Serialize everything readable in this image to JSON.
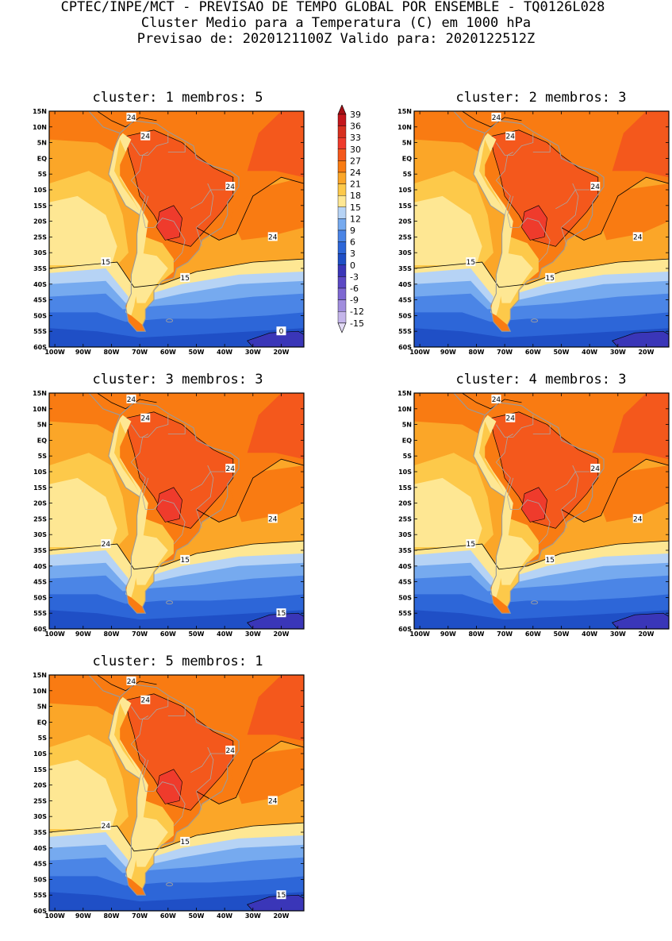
{
  "header": {
    "line1": "CPTEC/INPE/MCT - PREVISAO DE TEMPO GLOBAL POR ENSEMBLE - TQ0126L028",
    "line2": "Cluster Medio para a Temperatura (C) em 1000 hPa",
    "line3": "Previsao de: 2020121100Z   Valido para: 2020122512Z"
  },
  "map": {
    "lat_labels": [
      "15N",
      "10N",
      "5N",
      "EQ",
      "5S",
      "10S",
      "15S",
      "20S",
      "25S",
      "30S",
      "35S",
      "40S",
      "45S",
      "50S",
      "55S",
      "60S"
    ],
    "lon_labels": [
      "100W",
      "90W",
      "80W",
      "70W",
      "60W",
      "50W",
      "40W",
      "30W",
      "20W"
    ]
  },
  "colorbar": {
    "labels": [
      "39",
      "36",
      "33",
      "30",
      "27",
      "24",
      "21",
      "18",
      "15",
      "12",
      "9",
      "6",
      "3",
      "0",
      "-3",
      "-6",
      "-9",
      "-12",
      "-15"
    ],
    "colors": [
      "#a50f15",
      "#c4161c",
      "#d7301f",
      "#ef3b2c",
      "#f4581c",
      "#f97b12",
      "#fba628",
      "#fdc94a",
      "#fee793",
      "#b6d3f5",
      "#76aaef",
      "#4b85e6",
      "#2d66d8",
      "#1f4fc6",
      "#3a36b8",
      "#5b48c4",
      "#7e68d2",
      "#a08ddd",
      "#c4b5ea",
      "#e3dbf5"
    ]
  },
  "panels": [
    {
      "title": "cluster: 1  membros: 5",
      "labels": [
        "24",
        "24",
        "24",
        "24",
        "15",
        "15",
        "0"
      ]
    },
    {
      "title": "cluster: 2  membros: 3",
      "labels": [
        "24",
        "24",
        "24",
        "24",
        "15",
        "15"
      ]
    },
    {
      "title": "cluster: 3  membros: 3",
      "labels": [
        "24",
        "24",
        "24",
        "24",
        "24",
        "15",
        "15"
      ]
    },
    {
      "title": "cluster: 4  membros: 3",
      "labels": [
        "24",
        "24",
        "24",
        "24",
        "15",
        "15"
      ]
    },
    {
      "title": "cluster: 5  membros: 1",
      "labels": [
        "24",
        "24",
        "24",
        "24",
        "24",
        "15",
        "15"
      ]
    }
  ]
}
